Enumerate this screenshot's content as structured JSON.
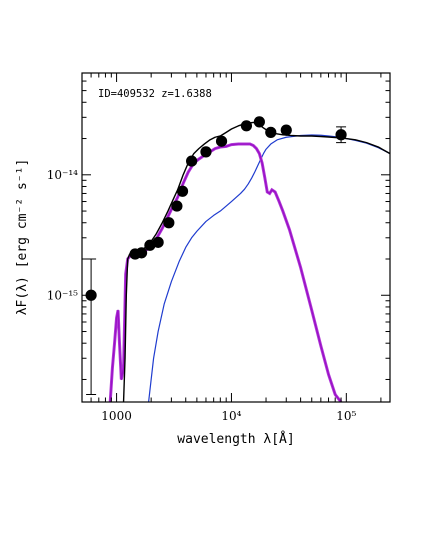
{
  "chart_data": {
    "type": "line",
    "annotation": "ID=409532 z=1.6388",
    "xlabel": "wavelength λ[Å]",
    "ylabel": "λF(λ) [erg cm⁻² s⁻¹]",
    "xscale": "log",
    "yscale": "log",
    "xlim": [
      500,
      240000
    ],
    "ylim": [
      1.3e-16,
      7e-14
    ],
    "grid": false,
    "x_ticks": [
      {
        "value": 1000,
        "label": "1000"
      },
      {
        "value": 10000,
        "label": "10⁴"
      },
      {
        "value": 100000,
        "label": "10⁵"
      }
    ],
    "y_ticks": [
      {
        "value": 1e-15,
        "label": "10⁻¹⁵"
      },
      {
        "value": 1e-14,
        "label": "10⁻¹⁴"
      }
    ],
    "colors": {
      "total": "#000000",
      "stellar": "#9b11c8",
      "stellar_secondary": "#b03ad6",
      "dust": "#1f3ccf",
      "points": "#000000"
    },
    "series": [
      {
        "key": "total",
        "x": [
          1150,
          1185,
          1215,
          1250,
          1300,
          1400,
          1550,
          1700,
          1850,
          2000,
          2200,
          2500,
          2800,
          3100,
          3400,
          3800,
          4200,
          4700,
          5200,
          5800,
          6500,
          7200,
          8000,
          9000,
          10000,
          11500,
          13000,
          14500,
          15500,
          16500,
          17500,
          19000,
          21000,
          24000,
          28000,
          33000,
          40000,
          50000,
          60000,
          70000,
          80000,
          90000,
          100000,
          120000,
          150000,
          190000,
          240000
        ],
        "y": [
          1.3e-16,
          3e-16,
          1e-15,
          2e-15,
          2.2e-15,
          2.25e-15,
          2.3e-15,
          2.4e-15,
          2.6e-15,
          2.8e-15,
          3.2e-15,
          4e-15,
          5e-15,
          6.2e-15,
          7.5e-15,
          1e-14,
          1.25e-14,
          1.5e-14,
          1.65e-14,
          1.8e-14,
          1.95e-14,
          2.05e-14,
          2.1e-14,
          2.25e-14,
          2.4e-14,
          2.55e-14,
          2.65e-14,
          2.7e-14,
          2.72e-14,
          2.7e-14,
          2.6e-14,
          2.45e-14,
          2.3e-14,
          2.2e-14,
          2.15e-14,
          2.12e-14,
          2.1e-14,
          2.1e-14,
          2.08e-14,
          2.06e-14,
          2.04e-14,
          2.02e-14,
          2e-14,
          1.95e-14,
          1.85e-14,
          1.7e-14,
          1.5e-14
        ]
      },
      {
        "key": "stellar",
        "x": [
          880,
          920,
          960,
          1000,
          1030,
          1060,
          1100,
          1150,
          1200,
          1250,
          1300,
          1400,
          1550,
          1700,
          1850,
          2000,
          2200,
          2500,
          2800,
          3100,
          3400,
          3800,
          4200,
          4700,
          5200,
          5800,
          6500,
          7200,
          8000,
          9000,
          10000,
          11500,
          13000,
          14500,
          15500,
          16500,
          17500,
          18500,
          19500,
          20500,
          21500,
          22500,
          24000,
          26000,
          28000,
          32000,
          40000,
          50000,
          60000,
          70000,
          80000,
          90000
        ],
        "y": [
          1.3e-16,
          2.5e-16,
          4e-16,
          6.5e-16,
          7.5e-16,
          4e-16,
          2e-16,
          2.5e-16,
          1.5e-15,
          2e-15,
          2.1e-15,
          2.15e-15,
          2.2e-15,
          2.3e-15,
          2.4e-15,
          2.6e-15,
          2.9e-15,
          3.6e-15,
          4.5e-15,
          5.5e-15,
          6.5e-15,
          8.5e-15,
          1.05e-14,
          1.25e-14,
          1.35e-14,
          1.45e-14,
          1.55e-14,
          1.65e-14,
          1.7e-14,
          1.72e-14,
          1.78e-14,
          1.8e-14,
          1.8e-14,
          1.8e-14,
          1.75e-14,
          1.65e-14,
          1.5e-14,
          1.25e-14,
          9.5e-15,
          7.2e-15,
          7e-15,
          7.5e-15,
          7.2e-15,
          6e-15,
          5e-15,
          3.5e-15,
          1.7e-15,
          7.5e-16,
          3.8e-16,
          2.2e-16,
          1.5e-16,
          1.3e-16
        ]
      },
      {
        "key": "dust",
        "x": [
          1900,
          2000,
          2100,
          2300,
          2600,
          3000,
          3500,
          4000,
          4500,
          5000,
          6000,
          7000,
          8000,
          9000,
          10000,
          11000,
          12000,
          13000,
          14000,
          15000,
          16000,
          17000,
          18000,
          19000,
          20000,
          22000,
          25000,
          30000,
          40000,
          50000,
          60000,
          70000,
          80000,
          90000,
          100000,
          120000,
          150000,
          190000,
          240000
        ],
        "y": [
          1.3e-16,
          2e-16,
          3e-16,
          5e-16,
          8.5e-16,
          1.3e-15,
          1.9e-15,
          2.5e-15,
          3e-15,
          3.4e-15,
          4.1e-15,
          4.6e-15,
          5e-15,
          5.5e-15,
          6e-15,
          6.5e-15,
          7e-15,
          7.6e-15,
          8.4e-15,
          9.4e-15,
          1.06e-14,
          1.2e-14,
          1.35e-14,
          1.5e-14,
          1.63e-14,
          1.8e-14,
          1.95e-14,
          2.05e-14,
          2.12e-14,
          2.14e-14,
          2.13e-14,
          2.1e-14,
          2.07e-14,
          2.03e-14,
          2e-14,
          1.93e-14,
          1.83e-14,
          1.68e-14,
          1.5e-14
        ]
      }
    ],
    "points": [
      {
        "x": 600,
        "y": 1e-15,
        "ylo": 1.5e-16,
        "yhi": 2e-15
      },
      {
        "x": 1450,
        "y": 2.2e-15
      },
      {
        "x": 1650,
        "y": 2.25e-15
      },
      {
        "x": 1950,
        "y": 2.6e-15
      },
      {
        "x": 2300,
        "y": 2.75e-15
      },
      {
        "x": 2850,
        "y": 4e-15
      },
      {
        "x": 3350,
        "y": 5.5e-15
      },
      {
        "x": 3750,
        "y": 7.3e-15
      },
      {
        "x": 4500,
        "y": 1.3e-14
      },
      {
        "x": 6000,
        "y": 1.55e-14
      },
      {
        "x": 8200,
        "y": 1.9e-14
      },
      {
        "x": 13500,
        "y": 2.55e-14
      },
      {
        "x": 17500,
        "y": 2.75e-14
      },
      {
        "x": 22000,
        "y": 2.25e-14
      },
      {
        "x": 30000,
        "y": 2.35e-14
      },
      {
        "x": 90000,
        "y": 2.15e-14,
        "ylo": 1.85e-14,
        "yhi": 2.5e-14
      }
    ]
  }
}
